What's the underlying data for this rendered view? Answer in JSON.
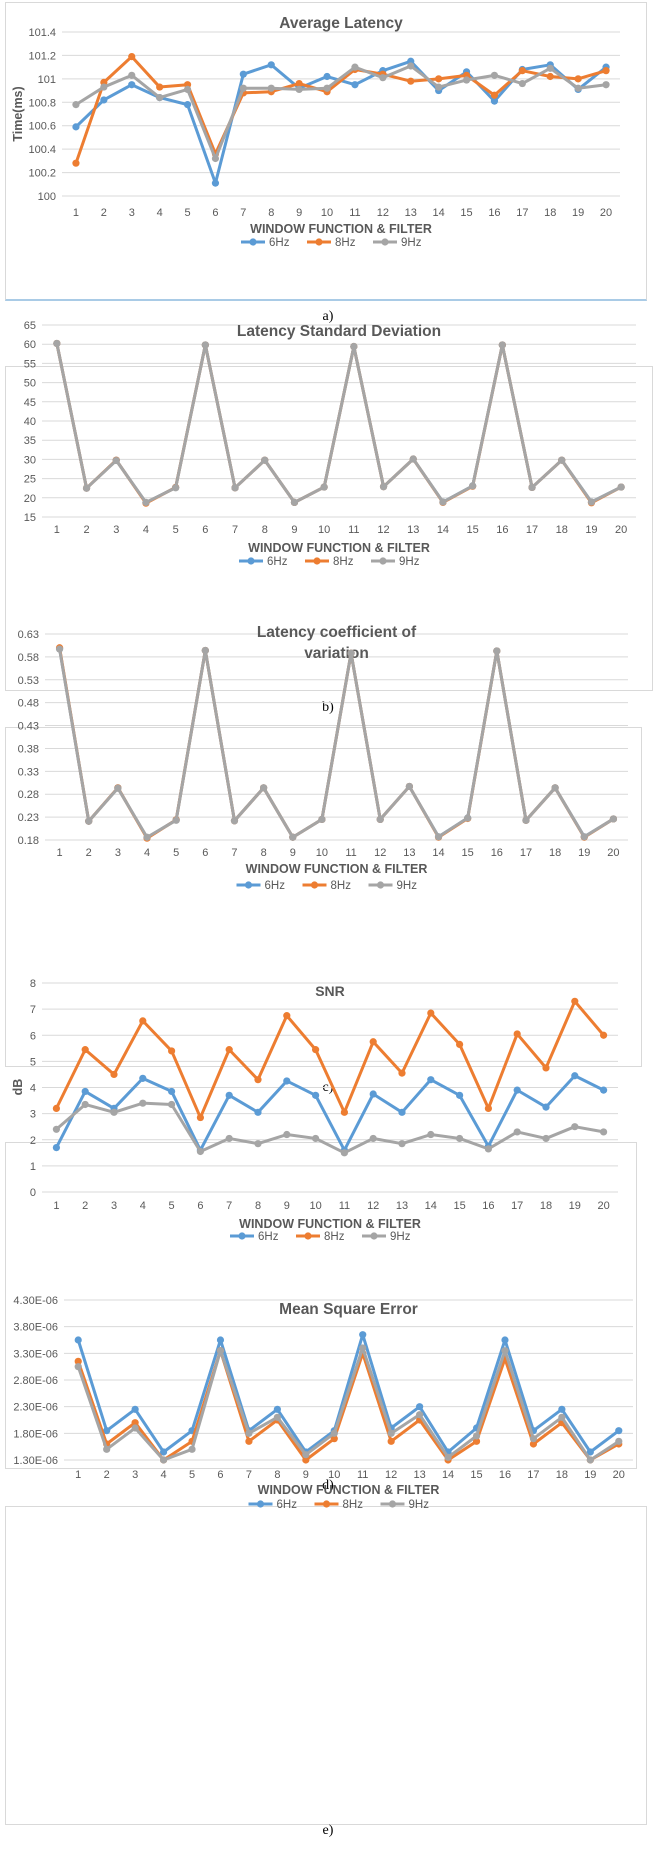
{
  "colors": {
    "s6": "#5B9BD5",
    "s8": "#ED7D31",
    "s9": "#A5A5A5",
    "grid": "#D9D9D9",
    "text": "#595959"
  },
  "chart_data": [
    {
      "type": "line",
      "title": "Average Latency",
      "xlabel": "WINDOW FUNCTION & FILTER",
      "ylabel": "Time(ms)",
      "caption": "a)",
      "categories": [
        "1",
        "2",
        "3",
        "4",
        "5",
        "6",
        "7",
        "8",
        "9",
        "10",
        "11",
        "12",
        "13",
        "14",
        "15",
        "16",
        "17",
        "18",
        "19",
        "20"
      ],
      "ylim": [
        100,
        101.4
      ],
      "yticks": [
        "100",
        "100.2",
        "100.4",
        "100.6",
        "100.8",
        "101",
        "101.2",
        "101.4"
      ],
      "series": [
        {
          "name": "6Hz",
          "values": [
            100.59,
            100.82,
            100.95,
            100.84,
            100.78,
            100.11,
            101.04,
            101.12,
            100.92,
            101.02,
            100.95,
            101.07,
            101.15,
            100.9,
            101.06,
            100.81,
            101.08,
            101.12,
            100.91,
            101.1
          ]
        },
        {
          "name": "8Hz",
          "values": [
            100.28,
            100.97,
            101.19,
            100.93,
            100.95,
            100.36,
            100.88,
            100.89,
            100.96,
            100.89,
            101.08,
            101.04,
            100.98,
            101.0,
            101.03,
            100.86,
            101.07,
            101.02,
            101.0,
            101.07
          ]
        },
        {
          "name": "9Hz",
          "values": [
            100.78,
            100.93,
            101.03,
            100.84,
            100.91,
            100.32,
            100.92,
            100.92,
            100.91,
            100.92,
            101.1,
            101.01,
            101.11,
            100.93,
            100.99,
            101.03,
            100.96,
            101.09,
            100.92,
            100.95
          ]
        }
      ]
    },
    {
      "type": "line",
      "title": "Latency Standard Deviation",
      "xlabel": "WINDOW FUNCTION & FILTER",
      "ylabel": "",
      "caption": "b)",
      "categories": [
        "1",
        "2",
        "3",
        "4",
        "5",
        "6",
        "7",
        "8",
        "9",
        "10",
        "11",
        "12",
        "13",
        "14",
        "15",
        "16",
        "17",
        "18",
        "19",
        "20"
      ],
      "ylim": [
        15,
        65
      ],
      "yticks": [
        "15",
        "20",
        "25",
        "30",
        "35",
        "40",
        "45",
        "50",
        "55",
        "60",
        "65"
      ],
      "series": [
        {
          "name": "6Hz",
          "values": [
            60.2,
            22.5,
            29.8,
            18.7,
            22.7,
            59.8,
            22.6,
            29.8,
            18.8,
            22.8,
            59.4,
            22.9,
            30.1,
            18.9,
            23.1,
            59.8,
            22.7,
            29.8,
            18.9,
            22.8
          ]
        },
        {
          "name": "8Hz",
          "values": [
            60.2,
            22.5,
            29.8,
            18.6,
            22.7,
            59.8,
            22.6,
            29.8,
            18.8,
            22.8,
            59.4,
            22.9,
            30.1,
            18.8,
            23.0,
            59.8,
            22.7,
            29.8,
            18.7,
            22.8
          ]
        },
        {
          "name": "9Hz",
          "values": [
            60.2,
            22.5,
            29.7,
            18.8,
            22.6,
            59.8,
            22.6,
            29.8,
            18.8,
            22.8,
            59.4,
            22.9,
            30.1,
            18.9,
            23.1,
            59.8,
            22.7,
            29.8,
            18.9,
            22.8
          ]
        }
      ]
    },
    {
      "type": "line",
      "title": "Latency coefficient of variation",
      "title_lines": [
        "Latency coefficient of",
        "variation"
      ],
      "xlabel": "WINDOW FUNCTION & FILTER",
      "ylabel": "",
      "caption": "c)",
      "categories": [
        "1",
        "2",
        "3",
        "4",
        "5",
        "6",
        "7",
        "8",
        "9",
        "10",
        "11",
        "12",
        "13",
        "14",
        "15",
        "16",
        "17",
        "18",
        "19",
        "20"
      ],
      "ylim": [
        0.18,
        0.63
      ],
      "yticks": [
        "0.18",
        "0.23",
        "0.28",
        "0.33",
        "0.38",
        "0.43",
        "0.48",
        "0.53",
        "0.58",
        "0.63"
      ],
      "series": [
        {
          "name": "6Hz",
          "values": [
            0.598,
            0.221,
            0.294,
            0.185,
            0.224,
            0.594,
            0.222,
            0.294,
            0.186,
            0.225,
            0.588,
            0.225,
            0.297,
            0.187,
            0.228,
            0.593,
            0.223,
            0.294,
            0.187,
            0.226
          ]
        },
        {
          "name": "8Hz",
          "values": [
            0.6,
            0.221,
            0.294,
            0.184,
            0.224,
            0.594,
            0.222,
            0.294,
            0.186,
            0.225,
            0.588,
            0.225,
            0.297,
            0.186,
            0.227,
            0.593,
            0.223,
            0.294,
            0.186,
            0.226
          ]
        },
        {
          "name": "9Hz",
          "values": [
            0.597,
            0.221,
            0.293,
            0.186,
            0.223,
            0.594,
            0.222,
            0.294,
            0.186,
            0.225,
            0.588,
            0.225,
            0.297,
            0.187,
            0.228,
            0.593,
            0.223,
            0.294,
            0.187,
            0.226
          ]
        }
      ]
    },
    {
      "type": "line",
      "title": "SNR",
      "xlabel": "WINDOW FUNCTION & FILTER",
      "ylabel": "dB",
      "caption": "d)",
      "categories": [
        "1",
        "2",
        "3",
        "4",
        "5",
        "6",
        "7",
        "8",
        "9",
        "10",
        "11",
        "12",
        "13",
        "14",
        "15",
        "16",
        "17",
        "18",
        "19",
        "20"
      ],
      "ylim": [
        0,
        8
      ],
      "yticks": [
        "0",
        "1",
        "2",
        "3",
        "4",
        "5",
        "6",
        "7",
        "8"
      ],
      "series": [
        {
          "name": "6Hz",
          "values": [
            1.7,
            3.85,
            3.2,
            4.35,
            3.85,
            1.6,
            3.7,
            3.05,
            4.25,
            3.7,
            1.6,
            3.75,
            3.05,
            4.3,
            3.7,
            1.75,
            3.9,
            3.25,
            4.45,
            3.9
          ]
        },
        {
          "name": "8Hz",
          "values": [
            3.2,
            5.45,
            4.5,
            6.55,
            5.4,
            2.85,
            5.45,
            4.3,
            6.75,
            5.45,
            3.05,
            5.75,
            4.55,
            6.85,
            5.65,
            3.2,
            6.05,
            4.75,
            7.3,
            6.0
          ]
        },
        {
          "name": "9Hz",
          "values": [
            2.4,
            3.35,
            3.05,
            3.4,
            3.35,
            1.55,
            2.05,
            1.85,
            2.2,
            2.05,
            1.5,
            2.05,
            1.85,
            2.2,
            2.05,
            1.65,
            2.3,
            2.05,
            2.5,
            2.3
          ]
        }
      ]
    },
    {
      "type": "line",
      "title": "Mean Square Error",
      "xlabel": "WINDOW FUNCTION & FILTER",
      "ylabel": "",
      "caption": "e)",
      "categories": [
        "1",
        "2",
        "3",
        "4",
        "5",
        "6",
        "7",
        "8",
        "9",
        "10",
        "11",
        "12",
        "13",
        "14",
        "15",
        "16",
        "17",
        "18",
        "19",
        "20"
      ],
      "ylim": [
        1.3e-06,
        4.3e-06
      ],
      "yticks": [
        "1.30E-06",
        "1.80E-06",
        "2.30E-06",
        "2.80E-06",
        "3.30E-06",
        "3.80E-06",
        "4.30E-06"
      ],
      "series": [
        {
          "name": "6Hz",
          "values": [
            3.55e-06,
            1.85e-06,
            2.25e-06,
            1.45e-06,
            1.85e-06,
            3.55e-06,
            1.85e-06,
            2.25e-06,
            1.45e-06,
            1.85e-06,
            3.65e-06,
            1.9e-06,
            2.3e-06,
            1.45e-06,
            1.9e-06,
            3.55e-06,
            1.85e-06,
            2.25e-06,
            1.45e-06,
            1.85e-06
          ]
        },
        {
          "name": "8Hz",
          "values": [
            3.15e-06,
            1.6e-06,
            2e-06,
            1.3e-06,
            1.65e-06,
            3.35e-06,
            1.65e-06,
            2.05e-06,
            1.3e-06,
            1.7e-06,
            3.3e-06,
            1.65e-06,
            2.05e-06,
            1.3e-06,
            1.65e-06,
            3.2e-06,
            1.6e-06,
            2e-06,
            1.3e-06,
            1.6e-06
          ]
        },
        {
          "name": "9Hz",
          "values": [
            3.05e-06,
            1.5e-06,
            1.9e-06,
            1.3e-06,
            1.5e-06,
            3.35e-06,
            1.8e-06,
            2.1e-06,
            1.4e-06,
            1.8e-06,
            3.4e-06,
            1.8e-06,
            2.15e-06,
            1.35e-06,
            1.75e-06,
            3.35e-06,
            1.7e-06,
            2.1e-06,
            1.3e-06,
            1.65e-06
          ]
        }
      ]
    }
  ]
}
